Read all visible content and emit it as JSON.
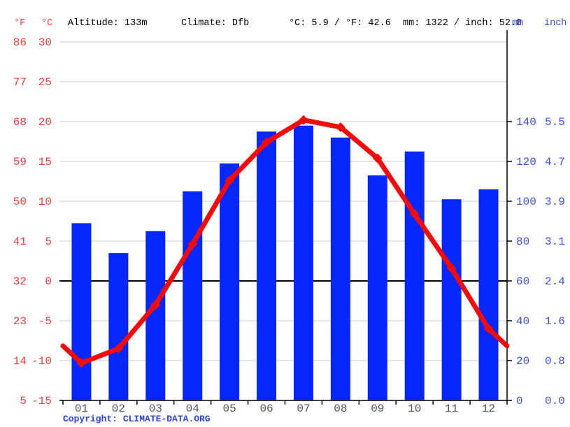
{
  "header": {
    "f_unit": "°F",
    "c_unit": "°C",
    "altitude": "Altitude: 133m",
    "climate": "Climate: Dfb",
    "avg_temp": "°C: 5.9 / °F: 42.6",
    "total_precip": "mm: 1322 / inch: 52.0",
    "mm_unit": "mm",
    "inch_unit": "inch"
  },
  "footer": {
    "copyright_prefix": "Copyright: ",
    "link_text": "CLIMATE-DATA.ORG"
  },
  "chart_data": {
    "type": "climograph-bar-line",
    "categories": [
      "01",
      "02",
      "03",
      "04",
      "05",
      "06",
      "07",
      "08",
      "09",
      "10",
      "11",
      "12"
    ],
    "series": [
      {
        "name": "precipitation_mm",
        "type": "bar",
        "values": [
          89,
          74,
          85,
          105,
          119,
          135,
          138,
          132,
          113,
          125,
          101,
          106
        ]
      },
      {
        "name": "temperature_c",
        "type": "line",
        "values": [
          -10.3,
          -8.5,
          -3.0,
          4.6,
          12.6,
          17.4,
          20.2,
          19.3,
          15.4,
          8.4,
          1.6,
          -6.0
        ]
      }
    ],
    "axes": {
      "left_f_ticks": [
        "86",
        "77",
        "68",
        "59",
        "50",
        "41",
        "32",
        "23",
        "14",
        "5"
      ],
      "left_c_ticks": [
        "30",
        "25",
        "20",
        "15",
        "10",
        "5",
        "0",
        "-5",
        "-10",
        "-15"
      ],
      "left_c_values": [
        30,
        25,
        20,
        15,
        10,
        5,
        0,
        -5,
        -10,
        -15
      ],
      "right_mm_ticks": [
        "140",
        "120",
        "100",
        "80",
        "60",
        "40",
        "20",
        "0"
      ],
      "right_mm_values": [
        140,
        120,
        100,
        80,
        60,
        40,
        20,
        0
      ],
      "right_inch_ticks": [
        "5.5",
        "4.7",
        "3.9",
        "3.1",
        "2.4",
        "1.6",
        "0.8",
        "0.0"
      ],
      "temp_axis_range_c": [
        -15,
        30
      ],
      "precip_axis_range_mm": [
        0,
        180
      ],
      "grid": "on",
      "zero_line": "bold-black"
    },
    "colors": {
      "bar": "#0527fb",
      "line": "#f10c0c",
      "red_label": "#f83c3c",
      "blue_label": "#3b52e0",
      "copyright": "#2b44d8",
      "grid": "#cccccc",
      "axis": "#000000",
      "month_label": "#555555"
    }
  }
}
